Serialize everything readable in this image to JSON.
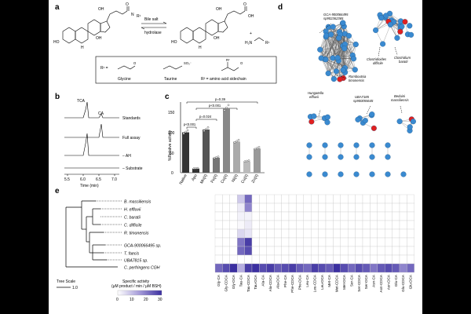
{
  "panels": {
    "a": {
      "label": "a",
      "arrow_label_1": "Bile salt",
      "arrow_label_2": "hydrolase",
      "r_eq": "R¹ =",
      "glycine": "Glycine",
      "taurine": "Taurine",
      "aa_side": "R² = amino acid sidechain",
      "oh": "OH",
      "ho": "HO",
      "h": "H",
      "nh": "N",
      "so3": "SO₃⁻",
      "h2n": "H₂N",
      "r1": "R¹",
      "r2": "R²",
      "o": "O",
      "plus": "+"
    },
    "b": {
      "label": "b",
      "peak1": "TCA",
      "peak2": "CA",
      "traces": [
        "Standards",
        "Full assay",
        "– AH",
        "– Substrate"
      ],
      "xticks": [
        "5.5",
        "6.0",
        "6.5",
        "7.0"
      ],
      "xlabel": "Time (min)"
    },
    "c": {
      "label": "c",
      "ylabel": "%Relative activity",
      "yticks": [
        "0",
        "50",
        "100",
        "150"
      ],
      "pvals": [
        "p<0.001",
        "p=0.024",
        "p<0.001",
        "p=0.39"
      ],
      "categories": [
        "Native",
        "Apo",
        "Mn(II)",
        "Fe(II)",
        "Co(II)",
        "Ni(II)",
        "Cu(II)",
        "Zn(II)"
      ],
      "values": [
        100,
        10,
        107,
        37,
        160,
        77,
        28,
        60
      ]
    },
    "d": {
      "label": "d",
      "annotations": [
        "GCA-900066495 sp902362365",
        "Romboutsia timonensis",
        "Clostridioides difficile",
        "Clostridium baratii",
        "Hungatella effluvii",
        "UBA7185 sp900055645",
        "Beduini massiliensis"
      ]
    },
    "e": {
      "label": "e",
      "species": [
        "B. massiliensis",
        "H. effluvii",
        "C. baratii",
        "C. difficile",
        "R. timonensis",
        "GCA-900066495 sp.",
        "T. faecis",
        "UBA7815 sp.",
        "C. perfringens CGH"
      ],
      "tree_scale": "Tree Scale",
      "tree_scale_value": "1.0",
      "colorbar_title_1": "Specific activity",
      "colorbar_title_2": "(μM product / min / μM BSH)",
      "colorbar_ticks": [
        "0",
        "10",
        "20",
        "30"
      ],
      "substrates": [
        "Gly-CA",
        "Gly-CDCA",
        "Gly-DCA",
        "Tau-CA",
        "Tau-CDCA",
        "Tau-DCA",
        "Ala-CA",
        "Ala-CDCA",
        "Ala-DCA",
        "Phe-CA",
        "Phe-CDCA",
        "Phe-DCA",
        "Leu-CA",
        "Leu-CDCA",
        "Leu-DCA",
        "Met-CA",
        "Met-CDCA",
        "Met-DCA",
        "Ser-CA",
        "Ser-CDCA",
        "Ser-DCA",
        "Asn-CA",
        "Asn-CDCA",
        "Asn-DCA",
        "Glu-CA",
        "Glu-CDCA",
        "Glu-DCA"
      ]
    }
  },
  "chart_data": [
    {
      "type": "bar",
      "title": "",
      "xlabel": "",
      "ylabel": "%Relative activity",
      "categories": [
        "Native",
        "Apo",
        "Mn(II)",
        "Fe(II)",
        "Co(II)",
        "Ni(II)",
        "Cu(II)",
        "Zn(II)"
      ],
      "values": [
        100,
        10,
        107,
        37,
        160,
        77,
        28,
        60
      ],
      "ylim": [
        0,
        175
      ]
    },
    {
      "type": "heatmap",
      "title": "",
      "xlabel": "",
      "ylabel": "",
      "rows": [
        "B. massiliensis",
        "H. effluvii",
        "C. baratii",
        "C. difficile",
        "R. timonensis",
        "GCA-900066495 sp.",
        "T. faecis",
        "UBA7815 sp.",
        "C. perfringens CGH"
      ],
      "columns": [
        "Gly-CA",
        "Gly-CDCA",
        "Gly-DCA",
        "Tau-CA",
        "Tau-CDCA",
        "Tau-DCA",
        "Ala-CA",
        "Ala-CDCA",
        "Ala-DCA",
        "Phe-CA",
        "Phe-CDCA",
        "Phe-DCA",
        "Leu-CA",
        "Leu-CDCA",
        "Leu-DCA",
        "Met-CA",
        "Met-CDCA",
        "Met-DCA",
        "Ser-CA",
        "Ser-CDCA",
        "Ser-DCA",
        "Asn-CA",
        "Asn-CDCA",
        "Asn-DCA",
        "Glu-CA",
        "Glu-CDCA",
        "Glu-DCA"
      ],
      "values": [
        [
          0,
          0,
          0,
          8,
          22,
          0,
          0,
          0,
          0,
          0,
          0,
          0,
          0,
          0,
          0,
          0,
          0,
          0,
          0,
          0,
          0,
          0,
          0,
          0,
          0,
          0,
          0
        ],
        [
          0,
          0,
          0,
          3,
          18,
          0,
          0,
          0,
          0,
          0,
          0,
          0,
          0,
          0,
          0,
          0,
          0,
          0,
          0,
          0,
          0,
          0,
          0,
          0,
          0,
          0,
          0
        ],
        [
          0,
          0,
          0,
          2,
          2,
          0,
          0,
          0,
          0,
          0,
          0,
          0,
          0,
          0,
          0,
          0,
          0,
          0,
          0,
          0,
          0,
          0,
          0,
          0,
          0,
          0,
          0
        ],
        [
          0,
          0,
          0,
          1,
          3,
          0,
          0,
          0,
          0,
          0,
          0,
          0,
          0,
          0,
          0,
          0,
          0,
          0,
          0,
          0,
          0,
          0,
          0,
          0,
          0,
          0,
          0
        ],
        [
          0,
          0,
          0,
          6,
          4,
          0,
          0,
          0,
          0,
          0,
          0,
          0,
          0,
          0,
          0,
          0,
          0,
          0,
          0,
          0,
          0,
          0,
          0,
          0,
          0,
          0,
          0
        ],
        [
          0,
          0,
          0,
          20,
          28,
          0,
          0,
          0,
          0,
          0,
          0,
          0,
          0,
          0,
          0,
          0,
          0,
          0,
          0,
          0,
          0,
          0,
          0,
          0,
          0,
          0,
          0
        ],
        [
          0,
          0,
          0,
          22,
          26,
          0,
          0,
          0,
          0,
          0,
          0,
          0,
          0,
          0,
          0,
          0,
          0,
          0,
          0,
          0,
          0,
          0,
          0,
          0,
          0,
          0,
          0
        ],
        [
          0,
          0,
          0,
          0,
          0,
          0,
          0,
          0,
          0,
          0,
          0,
          0,
          0,
          0,
          0,
          0,
          0,
          0,
          0,
          0,
          0,
          0,
          0,
          0,
          0,
          0,
          0
        ],
        [
          22,
          26,
          30,
          12,
          28,
          30,
          26,
          28,
          24,
          26,
          28,
          24,
          22,
          28,
          26,
          24,
          30,
          26,
          22,
          26,
          24,
          20,
          24,
          26,
          24,
          18,
          22
        ]
      ],
      "colorbar_range": [
        0,
        30
      ]
    }
  ]
}
